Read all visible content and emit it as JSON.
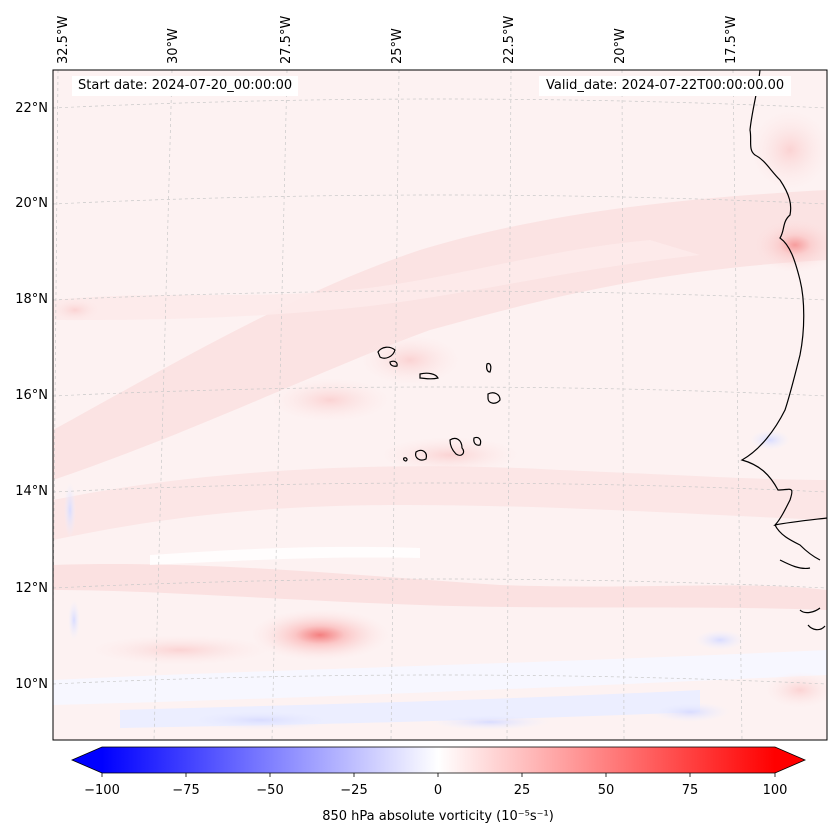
{
  "map": {
    "start_date_label": "Start date: 2024-07-20_00:00:00",
    "valid_date_label": "Valid_date: 2024-07-22T00:00:00.00",
    "longitude_labels": [
      "32.5°W",
      "30°W",
      "27.5°W",
      "25°W",
      "22.5°W",
      "20°W",
      "17.5°W"
    ],
    "latitude_labels": [
      "22°N",
      "20°N",
      "18°N",
      "16°N",
      "14°N",
      "12°N",
      "10°N"
    ],
    "field": "850 hPa absolute vorticity",
    "colors": {
      "coastline": "#000000",
      "negative_max": "#0000ff",
      "neutral": "#ffffff",
      "positive_max": "#ff0000"
    }
  },
  "colorbar": {
    "title": "850 hPa absolute vorticity (10⁻⁵s⁻¹)",
    "min": -100,
    "max": 100,
    "tick_labels": [
      "−100",
      "−75",
      "−50",
      "−25",
      "0",
      "25",
      "50",
      "75",
      "100"
    ]
  }
}
